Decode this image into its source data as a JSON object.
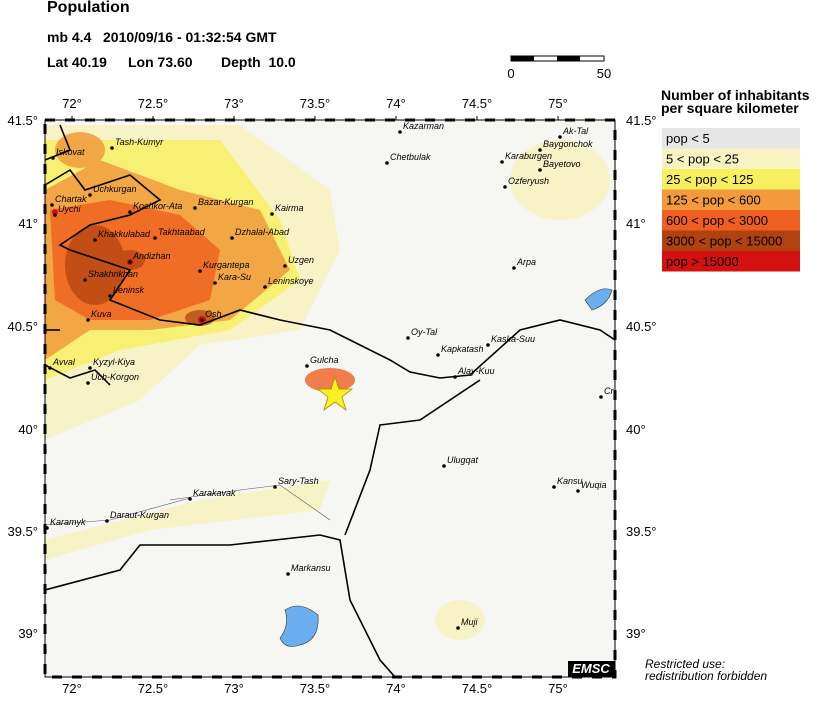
{
  "header": {
    "title": "Population",
    "magnitude": "mb 4.4",
    "datetime": "2010/09/16 - 01:32:54 GMT",
    "lat": "Lat 40.19",
    "lon": "Lon 73.60",
    "depth": "Depth  10.0"
  },
  "scale": {
    "start": "0",
    "end": "50"
  },
  "map": {
    "lon_labels": [
      "72°",
      "72.5°",
      "73°",
      "73.5°",
      "74°",
      "74.5°",
      "75°"
    ],
    "lat_labels": [
      "41.5°",
      "41°",
      "40.5°",
      "40°",
      "39.5°",
      "39°"
    ],
    "cities": [
      "Kazarman",
      "Ak-Tal",
      "Baygonchok",
      "Iskovat",
      "Tash-Kumyr",
      "Chetbulak",
      "Karaburgen",
      "Bayetovo",
      "Ozferyush",
      "Uchkurgan",
      "Chartak",
      "Uychi",
      "Kochkor-Ata",
      "Bazar-Kurgan",
      "Kairma",
      "Khakkulabad",
      "Takhtaabad",
      "Dzhalal-Abad",
      "Andizhan",
      "Arpa",
      "Kurgantepa",
      "Uzgen",
      "Shakhrikhan",
      "Kara-Su",
      "Leninskoye",
      "Leninsk",
      "Kuva",
      "Osh",
      "Oy-Tal",
      "Kaska-Suu",
      "Kapkatash",
      "Gulcha",
      "Avval",
      "Kyzyl-Kiya",
      "Alay-Kuu",
      "Uch-Korgon",
      "Cr",
      "Ulugqat",
      "Kansu",
      "Wuqia",
      "Sary-Tash",
      "Karakavak",
      "Karamyk",
      "Daraut-Kurgan",
      "Markansu",
      "Muji"
    ]
  },
  "legend": {
    "title_line1": "Number of inhabitants",
    "title_line2": "per square kilometer",
    "items": [
      {
        "label": "pop < 5",
        "color": "#e6e6e6"
      },
      {
        "label": "5 < pop < 25",
        "color": "#f7f3c2"
      },
      {
        "label": "25 < pop < 125",
        "color": "#f7ef5e"
      },
      {
        "label": "125 < pop < 600",
        "color": "#f29a3c"
      },
      {
        "label": "600 < pop < 3000",
        "color": "#ef5f1f"
      },
      {
        "label": "3000 < pop < 15000",
        "color": "#b0420f"
      },
      {
        "label": "pop > 15000",
        "color": "#d51010"
      }
    ]
  },
  "footer": {
    "brand": "EMSC",
    "note_line1": "Restricted use:",
    "note_line2": "redistribution forbidden"
  }
}
